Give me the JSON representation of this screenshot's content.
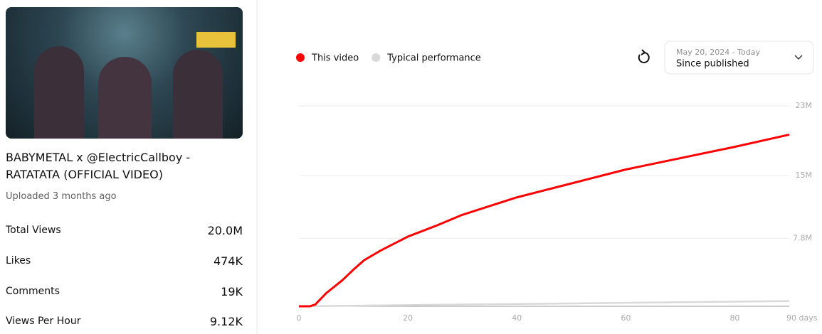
{
  "video": {
    "title": "BABYMETAL x @ElectricCallboy - RATATATA (OFFICIAL VIDEO)",
    "uploaded": "Uploaded 3 months ago",
    "stats": [
      {
        "label": "Total Views",
        "value": "20.0M"
      },
      {
        "label": "Likes",
        "value": "474K"
      },
      {
        "label": "Comments",
        "value": "19K"
      },
      {
        "label": "Views Per Hour",
        "value": "9.12K"
      }
    ]
  },
  "date_range": {
    "range": "May 20, 2024 - Today",
    "label": "Since published"
  },
  "chart_data": {
    "type": "line",
    "x": [
      0,
      2,
      3,
      5,
      8,
      10,
      12,
      15,
      20,
      25,
      30,
      40,
      50,
      60,
      70,
      80,
      90
    ],
    "series": [
      {
        "name": "This video",
        "color": "#ff0000",
        "values": [
          0,
          0,
          0.2,
          1.5,
          3.0,
          4.2,
          5.3,
          6.4,
          8.0,
          9.2,
          10.5,
          12.5,
          14.1,
          15.7,
          17.0,
          18.3,
          19.7
        ]
      },
      {
        "name": "Typical performance",
        "color": "#d9d9d9",
        "values": [
          0,
          0.01,
          0.02,
          0.03,
          0.05,
          0.07,
          0.08,
          0.1,
          0.13,
          0.17,
          0.2,
          0.27,
          0.33,
          0.4,
          0.47,
          0.53,
          0.6
        ]
      }
    ],
    "xlim": [
      0,
      90
    ],
    "xticks": [
      0,
      20,
      40,
      60,
      80,
      {
        "value": 90,
        "label": "90 days"
      }
    ],
    "ylim": [
      0,
      23
    ],
    "yticks": [
      {
        "value": 7.8,
        "label": "7.8M"
      },
      {
        "value": 15,
        "label": "15M"
      },
      {
        "value": 23,
        "label": "23M"
      }
    ],
    "grid": true
  }
}
